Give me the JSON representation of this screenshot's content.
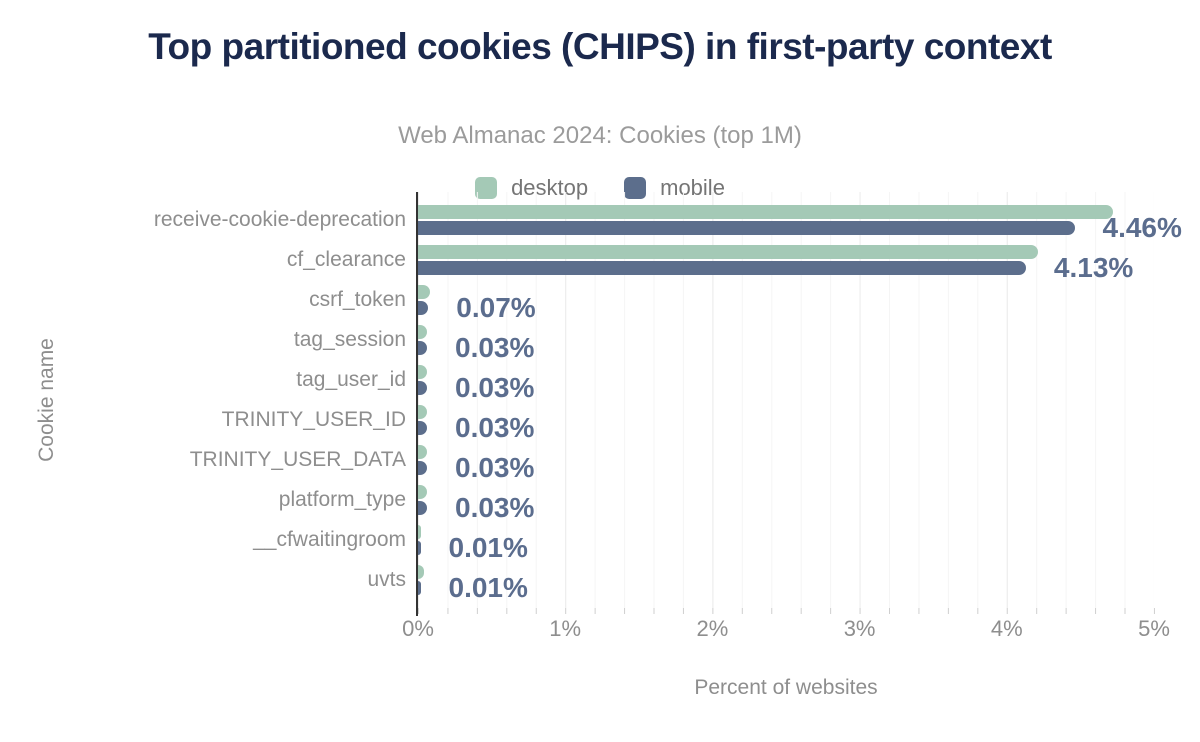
{
  "title": "Top partitioned cookies (CHIPS) in first-party context",
  "subtitle": "Web Almanac 2024: Cookies (top 1M)",
  "legend": [
    {
      "label": "desktop",
      "color": "#a4c9b6"
    },
    {
      "label": "mobile",
      "color": "#5c6e8c"
    }
  ],
  "colors": {
    "desktop": "#a4c9b6",
    "mobile": "#5c6e8c",
    "title": "#1b294d",
    "subtitle": "#9b9b9b",
    "axis_text": "#8e8e8e",
    "data_label": "#5b6d8e"
  },
  "axes": {
    "x_label": "Percent of websites",
    "y_label": "Cookie name",
    "x_ticks": [
      "0%",
      "1%",
      "2%",
      "3%",
      "4%",
      "5%"
    ]
  },
  "chart_data": {
    "type": "bar",
    "orientation": "horizontal",
    "title": "Top partitioned cookies (CHIPS) in first-party context",
    "subtitle": "Web Almanac 2024: Cookies (top 1M)",
    "xlabel": "Percent of websites",
    "ylabel": "Cookie name",
    "xlim": [
      0,
      5
    ],
    "grid": "minor vertical gridlines every 0.2%, major every 1%",
    "legend_position": "top-center",
    "categories": [
      "receive-cookie-deprecation",
      "cf_clearance",
      "csrf_token",
      "tag_session",
      "tag_user_id",
      "TRINITY_USER_ID",
      "TRINITY_USER_DATA",
      "platform_type",
      "__cfwaitingroom",
      "uvts"
    ],
    "series": [
      {
        "name": "desktop",
        "color": "#a4c9b6",
        "values": [
          4.72,
          4.21,
          0.08,
          0.04,
          0.04,
          0.05,
          0.04,
          0.04,
          0.01,
          0.02
        ]
      },
      {
        "name": "mobile",
        "color": "#5c6e8c",
        "values": [
          4.46,
          4.13,
          0.07,
          0.03,
          0.03,
          0.03,
          0.03,
          0.03,
          0.01,
          0.01
        ]
      }
    ],
    "data_labels": [
      "4.46%",
      "4.13%",
      "0.07%",
      "0.03%",
      "0.03%",
      "0.03%",
      "0.03%",
      "0.03%",
      "0.01%",
      "0.01%"
    ],
    "data_labels_series": "mobile"
  }
}
